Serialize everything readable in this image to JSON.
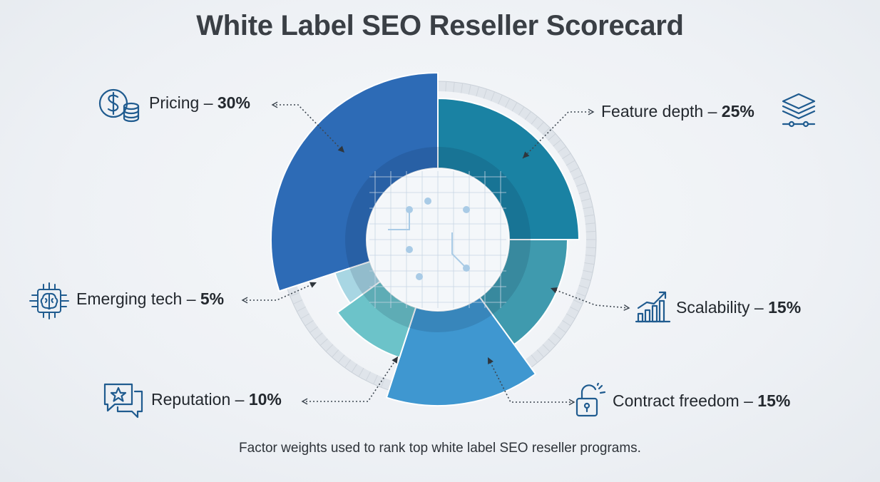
{
  "title": "White Label SEO Reseller Scorecard",
  "caption": "Factor weights used to rank top white label SEO reseller programs.",
  "colors": {
    "pricing": "#2d6bb6",
    "feature_depth": "#1a82a3",
    "scalability": "#3f9aae",
    "contract_freedom": "#3f97d0",
    "reputation": "#6cc3c9",
    "emerging_tech": "#a8d6e3",
    "icon": "#1f5b8f"
  },
  "chart_data": {
    "type": "pie",
    "title": "White Label SEO Reseller Scorecard",
    "unit": "%",
    "slices": [
      {
        "label": "Pricing",
        "value": 30,
        "display": "30%",
        "icon": "dollar-coins-icon"
      },
      {
        "label": "Feature depth",
        "value": 25,
        "display": "25%",
        "icon": "layers-icon"
      },
      {
        "label": "Scalability",
        "value": 15,
        "display": "15%",
        "icon": "growth-chart-icon"
      },
      {
        "label": "Contract freedom",
        "value": 15,
        "display": "15%",
        "icon": "unlocked-padlock-icon"
      },
      {
        "label": "Reputation",
        "value": 10,
        "display": "10%",
        "icon": "star-chat-icon"
      },
      {
        "label": "Emerging tech",
        "value": 5,
        "display": "5%",
        "icon": "ai-brain-chip-icon"
      }
    ]
  }
}
